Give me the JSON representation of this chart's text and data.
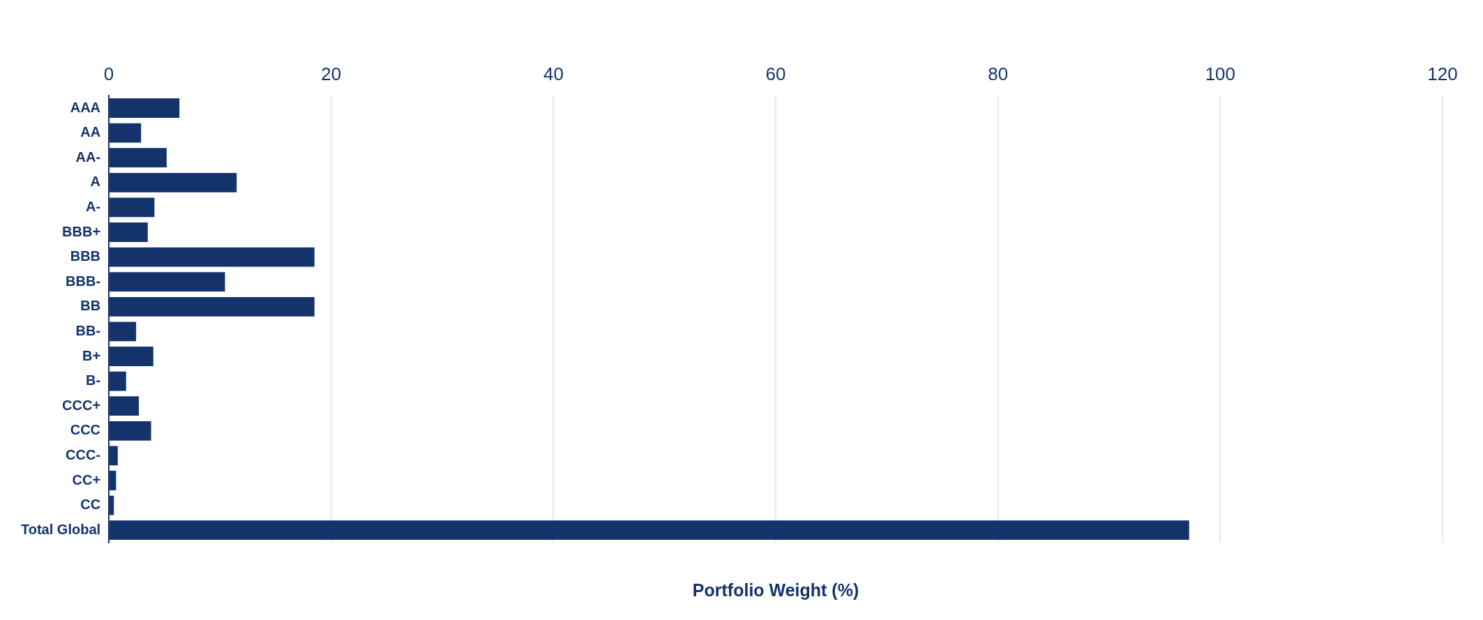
{
  "chart_data": {
    "type": "bar",
    "orientation": "horizontal",
    "xlabel": "Portfolio Weight (%)",
    "categories": [
      "AAA",
      "AA",
      "AA-",
      "A",
      "A-",
      "BBB+",
      "BBB",
      "BBB-",
      "BB",
      "BB-",
      "B+",
      "B-",
      "CCC+",
      "CCC",
      "CCC-",
      "CC+",
      "CC",
      "Total Global"
    ],
    "series": [
      {
        "color": "#14336b",
        "values": [
          6.35,
          2.9,
          5.2,
          11.5,
          4.1,
          3.5,
          18.5,
          10.45,
          18.5,
          2.45,
          4.0,
          1.55,
          2.7,
          3.8,
          0.8,
          0.65,
          0.45,
          97.2
        ]
      }
    ],
    "xlim": [
      0,
      120
    ],
    "xticks": [
      0,
      20,
      40,
      60,
      80,
      100,
      120
    ],
    "grid": "x",
    "legend": false
  }
}
